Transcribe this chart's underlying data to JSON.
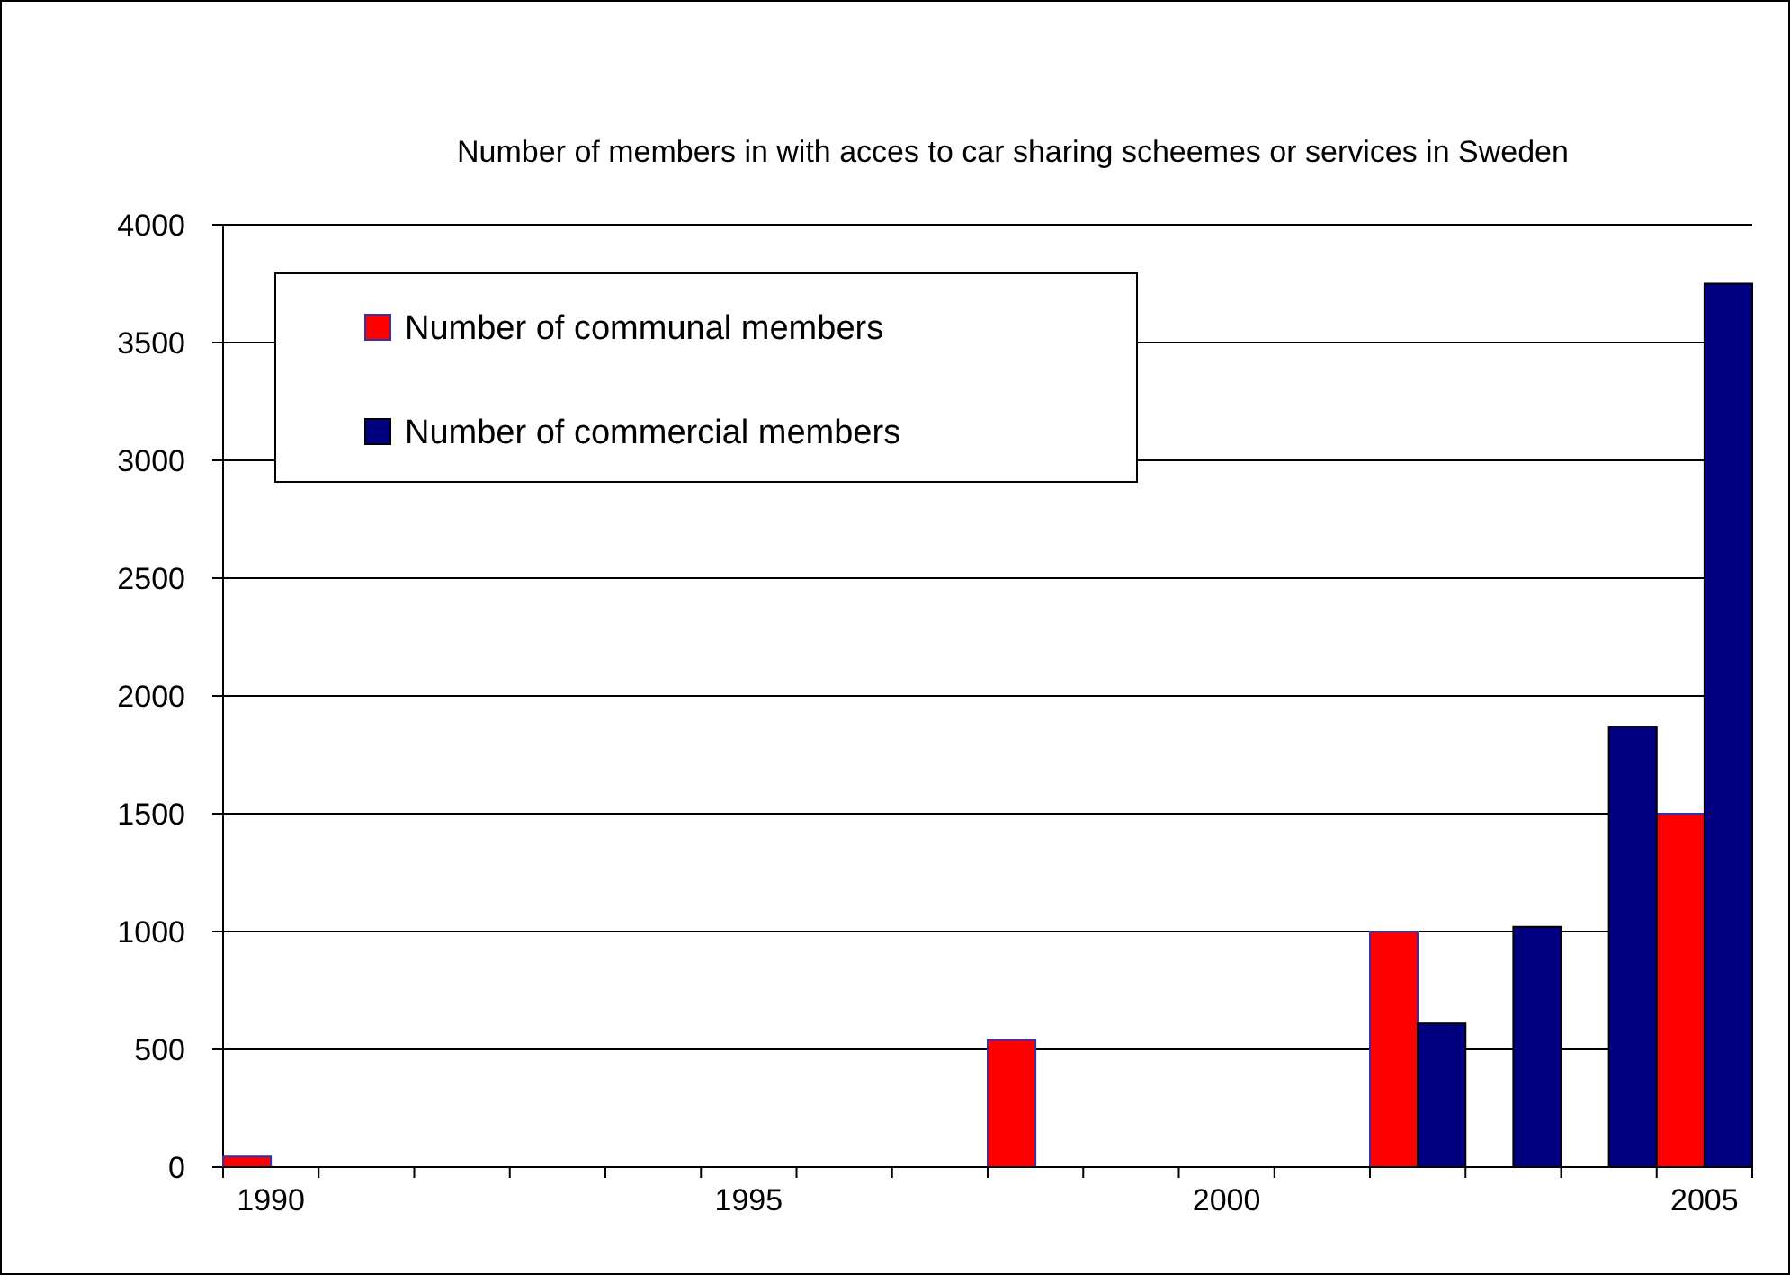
{
  "chart_data": {
    "type": "bar",
    "title": "Number of members in with acces to car sharing scheemes or services in Sweden",
    "categories": [
      "1990",
      null,
      null,
      null,
      null,
      "1995",
      null,
      null,
      null,
      null,
      "2000",
      null,
      null,
      null,
      null,
      "2005"
    ],
    "series": [
      {
        "name": "Number of communal members",
        "color": "#ff0000",
        "values": [
          45,
          null,
          null,
          null,
          null,
          null,
          null,
          null,
          540,
          null,
          null,
          null,
          1000,
          null,
          null,
          1500
        ]
      },
      {
        "name": "Number of commercial members",
        "color": "#000080",
        "values": [
          null,
          null,
          null,
          null,
          null,
          null,
          null,
          null,
          null,
          null,
          null,
          null,
          610,
          1020,
          1870,
          3750
        ]
      }
    ],
    "ylim": [
      0,
      4000
    ],
    "yticks": [
      0,
      500,
      1000,
      1500,
      2000,
      2500,
      3000,
      3500,
      4000
    ],
    "grid": "y",
    "legend": "top left"
  }
}
